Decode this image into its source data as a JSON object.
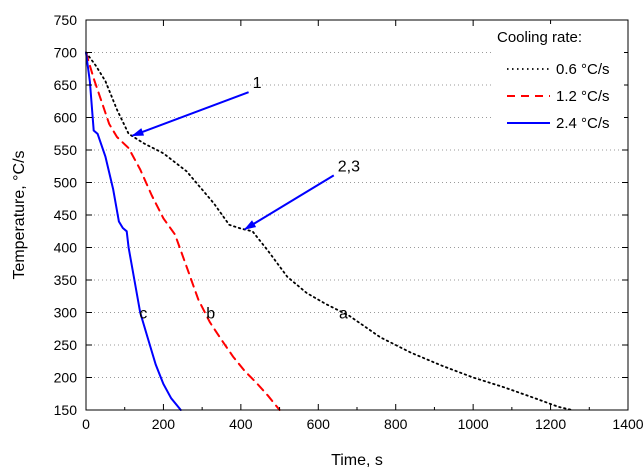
{
  "chart_data": {
    "type": "line",
    "xlabel": "Time, s",
    "ylabel": "Temperature, °C/s",
    "xlim": [
      0,
      1400
    ],
    "ylim": [
      150,
      750
    ],
    "x_ticks": [
      0,
      200,
      400,
      600,
      800,
      1000,
      1200,
      1400
    ],
    "y_ticks": [
      150,
      200,
      250,
      300,
      350,
      400,
      450,
      500,
      550,
      600,
      650,
      700,
      750
    ],
    "grid": "horizontal dotted",
    "legend": {
      "title": "Cooling rate:",
      "placement": "top-right"
    },
    "series": [
      {
        "name": "0.6 °C/s",
        "curve_label": "a",
        "color": "#000000",
        "style": "dotted",
        "points": [
          [
            0,
            700
          ],
          [
            25,
            680
          ],
          [
            50,
            656
          ],
          [
            80,
            612
          ],
          [
            110,
            575
          ],
          [
            150,
            560
          ],
          [
            200,
            545
          ],
          [
            260,
            517
          ],
          [
            330,
            468
          ],
          [
            370,
            435
          ],
          [
            400,
            429
          ],
          [
            430,
            425
          ],
          [
            470,
            395
          ],
          [
            520,
            355
          ],
          [
            570,
            330
          ],
          [
            620,
            313
          ],
          [
            680,
            295
          ],
          [
            760,
            262
          ],
          [
            840,
            238
          ],
          [
            920,
            218
          ],
          [
            1000,
            200
          ],
          [
            1080,
            185
          ],
          [
            1160,
            168
          ],
          [
            1220,
            155
          ],
          [
            1255,
            150
          ]
        ]
      },
      {
        "name": "1.2 °C/s",
        "curve_label": "b",
        "color": "#ff0000",
        "style": "dashed",
        "points": [
          [
            0,
            700
          ],
          [
            20,
            660
          ],
          [
            40,
            625
          ],
          [
            60,
            590
          ],
          [
            80,
            570
          ],
          [
            110,
            553
          ],
          [
            140,
            520
          ],
          [
            170,
            480
          ],
          [
            200,
            445
          ],
          [
            230,
            420
          ],
          [
            260,
            370
          ],
          [
            290,
            320
          ],
          [
            320,
            285
          ],
          [
            350,
            258
          ],
          [
            380,
            232
          ],
          [
            410,
            210
          ],
          [
            440,
            192
          ],
          [
            470,
            172
          ],
          [
            500,
            150
          ]
        ]
      },
      {
        "name": "2.4 °C/s",
        "curve_label": "c",
        "color": "#0000ff",
        "style": "solid",
        "points": [
          [
            0,
            700
          ],
          [
            10,
            655
          ],
          [
            20,
            580
          ],
          [
            30,
            575
          ],
          [
            50,
            540
          ],
          [
            70,
            490
          ],
          [
            85,
            440
          ],
          [
            95,
            430
          ],
          [
            105,
            425
          ],
          [
            110,
            400
          ],
          [
            125,
            350
          ],
          [
            140,
            300
          ],
          [
            160,
            260
          ],
          [
            180,
            220
          ],
          [
            200,
            190
          ],
          [
            220,
            168
          ],
          [
            245,
            150
          ]
        ]
      }
    ],
    "annotations": [
      {
        "text": "1",
        "arrow_target": [
          120,
          572
        ],
        "label_at": [
          420,
          639
        ]
      },
      {
        "text": "2,3",
        "arrow_target": [
          410,
          428
        ],
        "label_at": [
          640,
          511
        ]
      }
    ]
  }
}
